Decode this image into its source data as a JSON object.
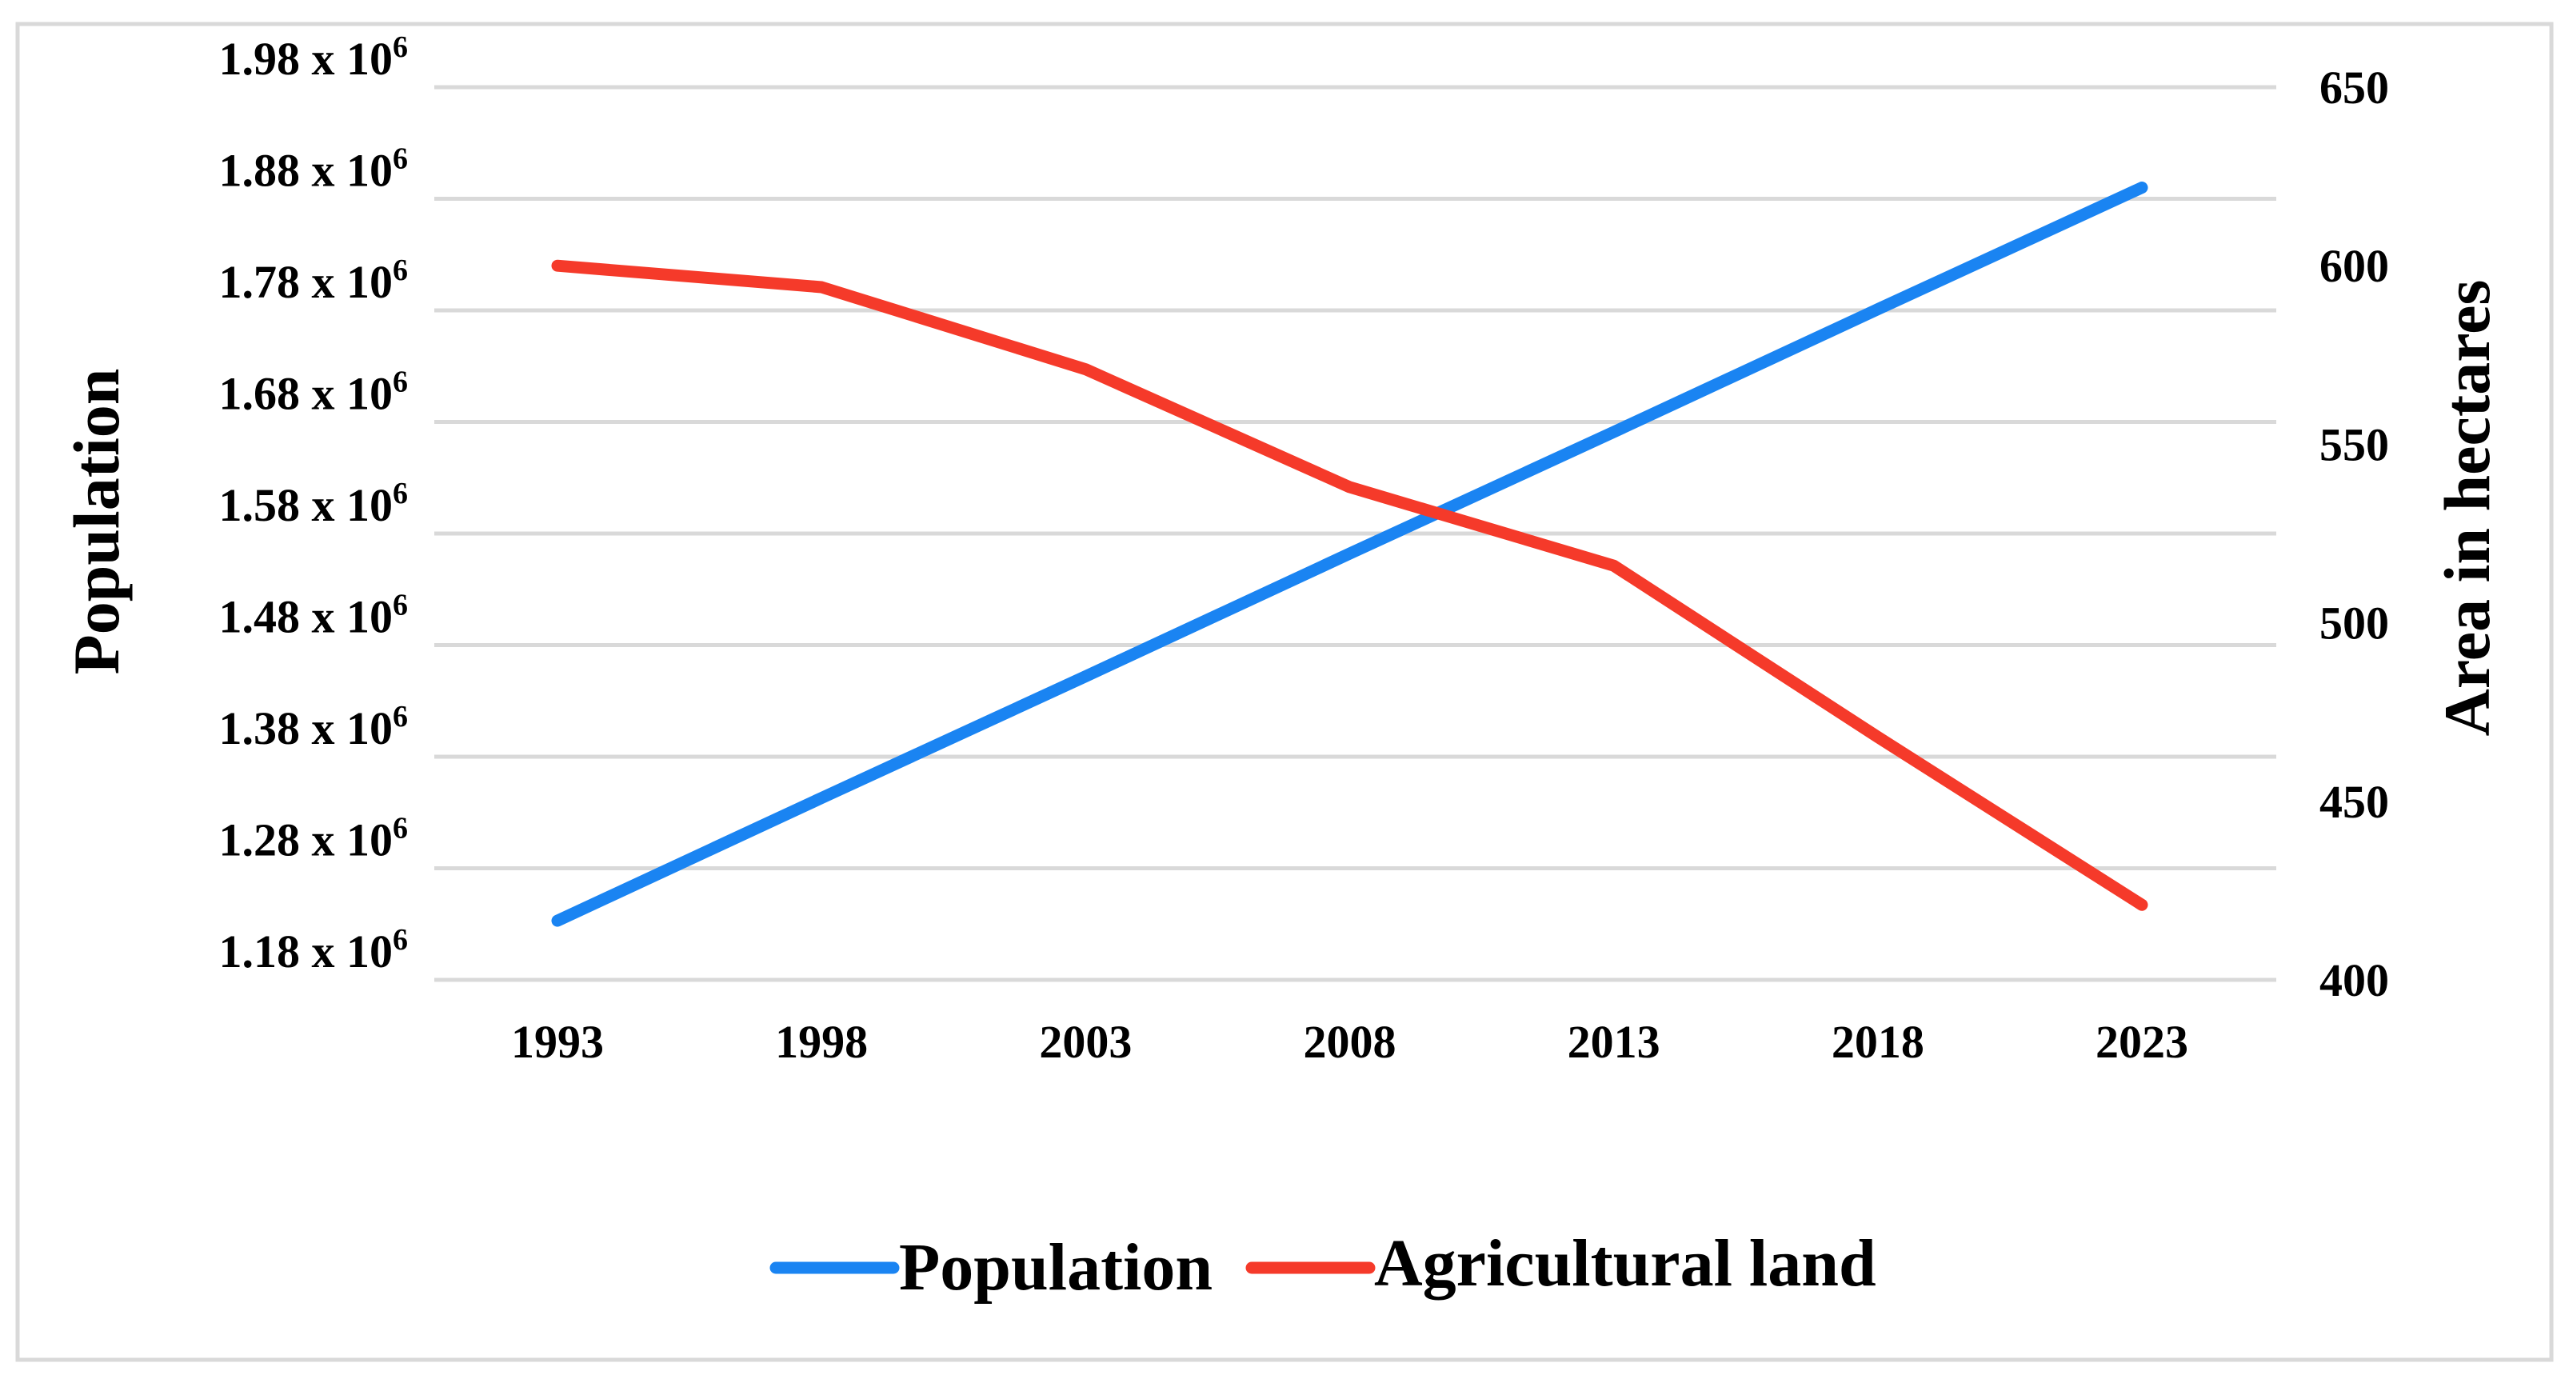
{
  "chart_data": {
    "type": "line",
    "title": "",
    "x": [
      "1993",
      "1998",
      "2003",
      "2008",
      "2013",
      "2018",
      "2023"
    ],
    "xlabel": "",
    "ylabel": "Population",
    "y2label": "Area in hectares",
    "ylim": [
      1.18,
      1.98
    ],
    "ylim_unit_multiplier": "x 10^6",
    "y2lim": [
      400,
      650
    ],
    "yticks": [
      {
        "base": "1.98 x 10",
        "exp": "6",
        "value": 1.98
      },
      {
        "base": "1.88 x 10",
        "exp": "6",
        "value": 1.88
      },
      {
        "base": "1.78 x 10",
        "exp": "6",
        "value": 1.78
      },
      {
        "base": "1.68 x 10",
        "exp": "6",
        "value": 1.68
      },
      {
        "base": "1.58 x 10",
        "exp": "6",
        "value": 1.58
      },
      {
        "base": "1.48 x 10",
        "exp": "6",
        "value": 1.48
      },
      {
        "base": "1.38 x 10",
        "exp": "6",
        "value": 1.38
      },
      {
        "base": "1.28 x 10",
        "exp": "6",
        "value": 1.28
      },
      {
        "base": "1.18 x 10",
        "exp": "6",
        "value": 1.18
      }
    ],
    "y2ticks": [
      "650",
      "600",
      "550",
      "500",
      "450",
      "400"
    ],
    "grid": true,
    "legend": {
      "placement": "bottom-center"
    },
    "series": [
      {
        "name": "Population",
        "axis": "left",
        "color": "#1a84f2",
        "values": [
          1.233,
          1.343,
          1.452,
          1.562,
          1.671,
          1.781,
          1.89
        ]
      },
      {
        "name": "Agricultural land",
        "axis": "right",
        "color": "#f53a2a",
        "values": [
          600,
          594,
          571,
          538,
          516,
          468,
          421
        ]
      }
    ]
  }
}
